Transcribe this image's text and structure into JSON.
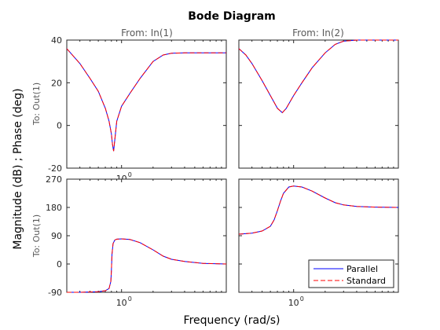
{
  "title": "Bode Diagram",
  "xlabel": "Frequency  (rad/s)",
  "ylabel": "Magnitude (dB) ; Phase (deg)",
  "column_titles": [
    "From: In(1)",
    "From: In(2)"
  ],
  "row_labels": [
    "To: Out(1)",
    "To: Out(1)"
  ],
  "legend": [
    {
      "label": "Parallel",
      "color": "#0000ff",
      "style": "solid"
    },
    {
      "label": "Standard",
      "color": "#ff0000",
      "style": "dashed"
    }
  ],
  "colors": {
    "parallel": "#0000ff",
    "standard": "#ff0000",
    "axis": "#262626",
    "tick_text": "#262626",
    "header_text": "#595959"
  },
  "chart_data": [
    {
      "type": "line",
      "panel": "magnitude-in1",
      "x_scale": "log",
      "xlim": [
        0.3,
        10
      ],
      "ylim": [
        -20,
        40
      ],
      "yticks": [
        -20,
        0,
        20,
        40
      ],
      "xticks": [
        {
          "value": 1,
          "label": "10",
          "exponent": "0"
        }
      ],
      "series": [
        {
          "name": "Parallel",
          "x": [
            0.3,
            0.4,
            0.5,
            0.6,
            0.7,
            0.76,
            0.8,
            0.82,
            0.84,
            0.87,
            0.9,
            1.0,
            1.2,
            1.5,
            2.0,
            2.5,
            3.0,
            4.0,
            6.0,
            10.0
          ],
          "y": [
            36,
            29,
            22,
            16,
            8,
            2,
            -4,
            -9,
            -12,
            -5,
            2,
            9,
            15,
            22,
            30,
            33,
            33.8,
            34,
            34,
            34
          ]
        },
        {
          "name": "Standard",
          "x": [
            0.3,
            0.4,
            0.5,
            0.6,
            0.7,
            0.76,
            0.8,
            0.82,
            0.84,
            0.87,
            0.9,
            1.0,
            1.2,
            1.5,
            2.0,
            2.5,
            3.0,
            4.0,
            6.0,
            10.0
          ],
          "y": [
            36,
            29,
            22,
            16,
            8,
            2,
            -4,
            -9,
            -12,
            -5,
            2,
            9,
            15,
            22,
            30,
            33,
            33.8,
            34,
            34,
            34
          ]
        }
      ]
    },
    {
      "type": "line",
      "panel": "magnitude-in2",
      "x_scale": "log",
      "xlim": [
        0.3,
        10
      ],
      "ylim": [
        -20,
        40
      ],
      "series": [
        {
          "name": "Parallel",
          "x": [
            0.3,
            0.35,
            0.4,
            0.5,
            0.6,
            0.7,
            0.78,
            0.85,
            1.0,
            1.2,
            1.5,
            2.0,
            2.5,
            3.0,
            4.0,
            6.0,
            10.0
          ],
          "y": [
            36,
            33,
            29,
            21,
            14,
            8,
            6,
            8,
            14,
            20,
            27,
            34,
            38,
            39.5,
            40,
            40,
            40
          ]
        },
        {
          "name": "Standard",
          "x": [
            0.3,
            0.35,
            0.4,
            0.5,
            0.6,
            0.7,
            0.78,
            0.85,
            1.0,
            1.2,
            1.5,
            2.0,
            2.5,
            3.0,
            4.0,
            6.0,
            10.0
          ],
          "y": [
            36,
            33,
            29,
            21,
            14,
            8,
            6,
            8,
            14,
            20,
            27,
            34,
            38,
            39.5,
            40,
            40,
            40
          ]
        }
      ]
    },
    {
      "type": "line",
      "panel": "phase-in1",
      "x_scale": "log",
      "xlim": [
        0.3,
        10
      ],
      "ylim": [
        -90,
        270
      ],
      "yticks": [
        -90,
        0,
        90,
        180,
        270
      ],
      "xticks": [
        {
          "value": 1,
          "label": "10",
          "exponent": "0"
        }
      ],
      "series": [
        {
          "name": "Parallel",
          "x": [
            0.3,
            0.4,
            0.5,
            0.6,
            0.7,
            0.76,
            0.79,
            0.8,
            0.81,
            0.83,
            0.86,
            0.9,
            1.0,
            1.2,
            1.5,
            2.0,
            2.5,
            3.0,
            4.0,
            6.0,
            10.0
          ],
          "y": [
            -90,
            -90,
            -89,
            -88,
            -85,
            -78,
            -55,
            -20,
            30,
            65,
            76,
            79,
            80,
            78,
            68,
            45,
            25,
            15,
            8,
            2,
            0
          ]
        },
        {
          "name": "Standard",
          "x": [
            0.3,
            0.4,
            0.5,
            0.6,
            0.7,
            0.76,
            0.79,
            0.8,
            0.81,
            0.83,
            0.86,
            0.9,
            1.0,
            1.2,
            1.5,
            2.0,
            2.5,
            3.0,
            4.0,
            6.0,
            10.0
          ],
          "y": [
            -90,
            -90,
            -89,
            -88,
            -85,
            -78,
            -55,
            -20,
            30,
            65,
            76,
            79,
            80,
            78,
            68,
            45,
            25,
            15,
            8,
            2,
            0
          ]
        }
      ]
    },
    {
      "type": "line",
      "panel": "phase-in2",
      "x_scale": "log",
      "xlim": [
        0.3,
        10
      ],
      "ylim": [
        -90,
        270
      ],
      "xticks": [
        {
          "value": 1,
          "label": "10",
          "exponent": "0"
        }
      ],
      "series": [
        {
          "name": "Parallel",
          "x": [
            0.3,
            0.4,
            0.5,
            0.6,
            0.65,
            0.7,
            0.75,
            0.8,
            0.9,
            1.0,
            1.2,
            1.5,
            2.0,
            2.5,
            3.0,
            4.0,
            6.0,
            10.0
          ],
          "y": [
            95,
            98,
            105,
            120,
            140,
            170,
            200,
            225,
            245,
            248,
            245,
            232,
            210,
            195,
            188,
            183,
            181,
            180
          ]
        },
        {
          "name": "Standard",
          "x": [
            0.3,
            0.4,
            0.5,
            0.6,
            0.65,
            0.7,
            0.75,
            0.8,
            0.9,
            1.0,
            1.2,
            1.5,
            2.0,
            2.5,
            3.0,
            4.0,
            6.0,
            10.0
          ],
          "y": [
            95,
            98,
            105,
            120,
            140,
            170,
            200,
            225,
            245,
            248,
            245,
            232,
            210,
            195,
            188,
            183,
            181,
            180
          ]
        }
      ]
    }
  ]
}
